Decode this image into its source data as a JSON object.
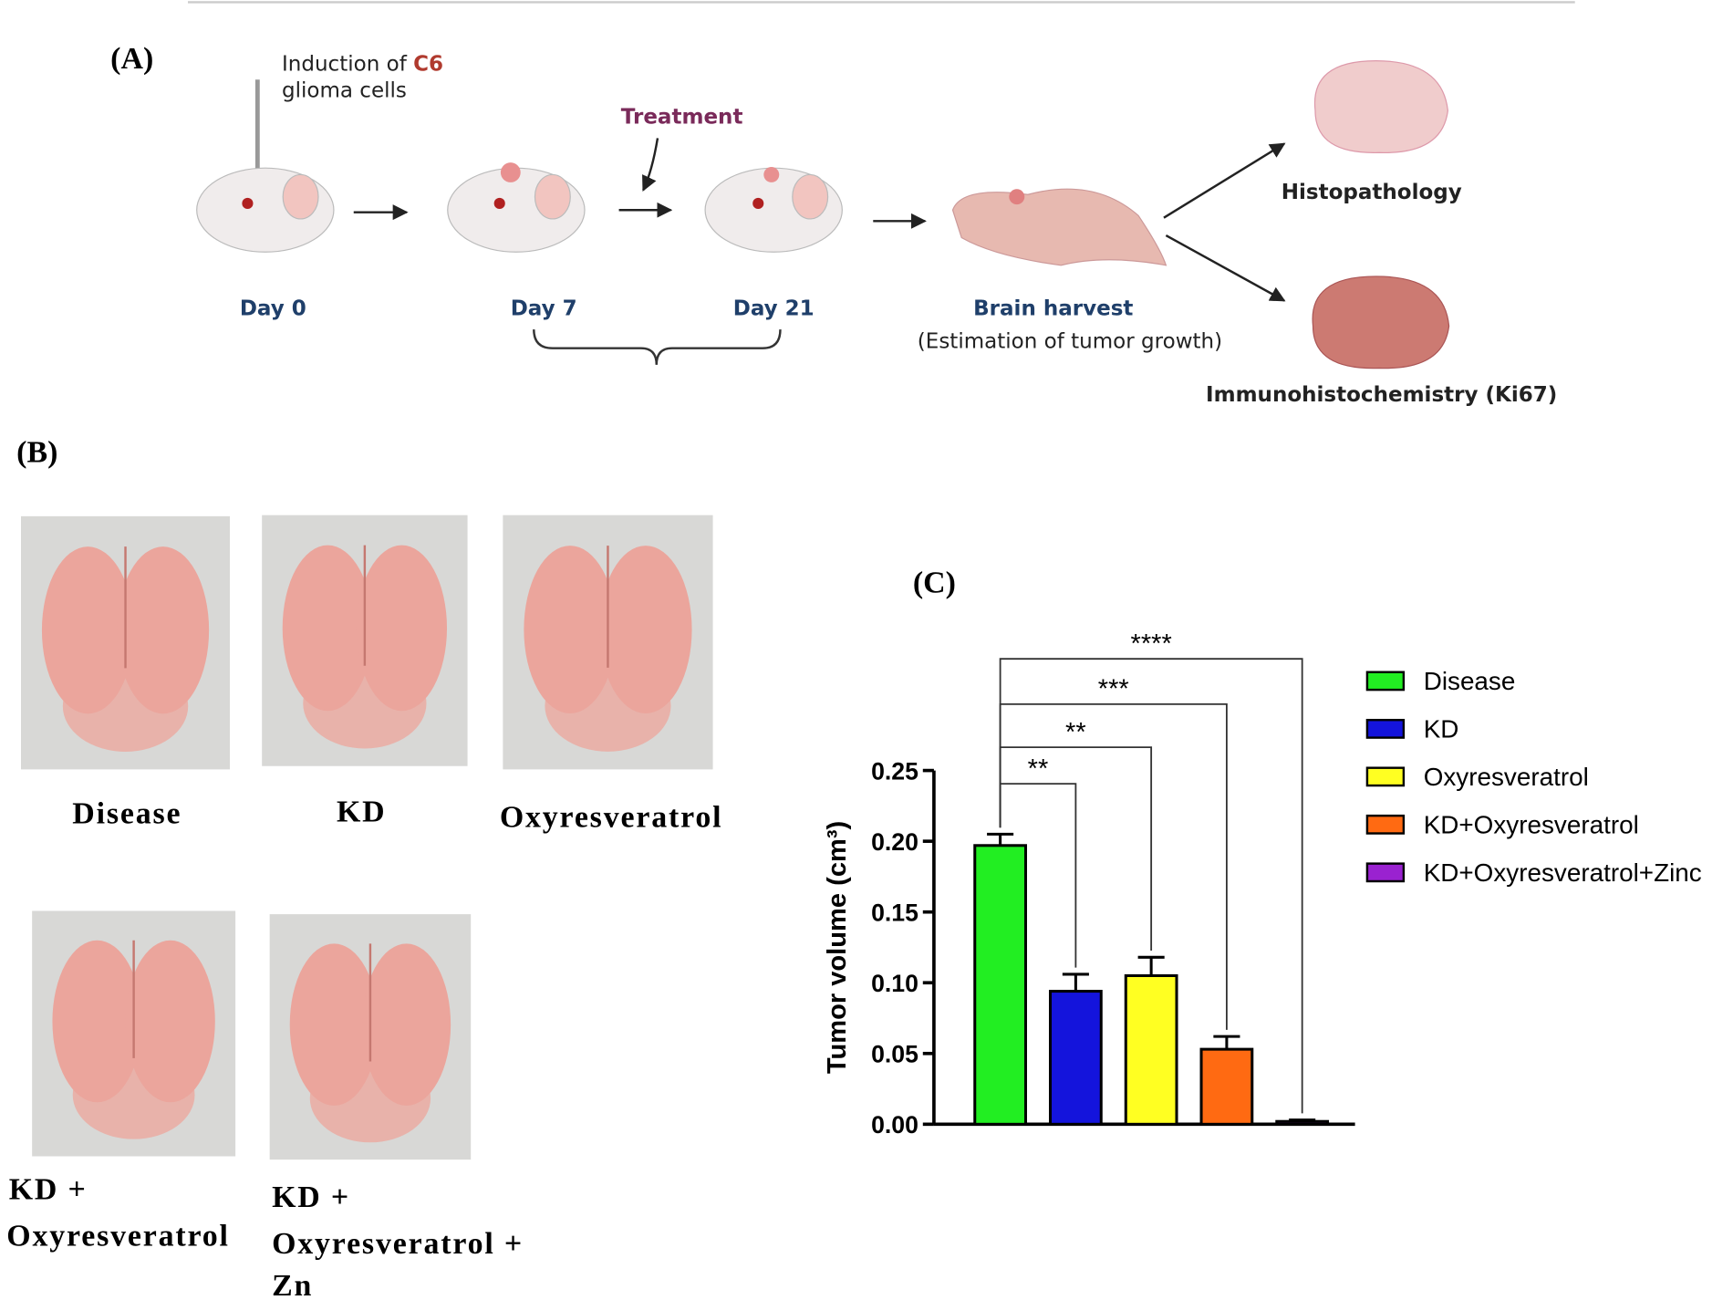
{
  "panel_a": {
    "label": "(A)",
    "induction_line1": "Induction of",
    "induction_highlight": "C6",
    "induction_line2": "glioma cells",
    "treatment": "Treatment",
    "day0": "Day 0",
    "day7": "Day 7",
    "day21": "Day 21",
    "brain_harvest": "Brain harvest",
    "estimation": "(Estimation of tumor growth)",
    "histopathology": "Histopathology",
    "ihc": "Immunohistochemistry (Ki67)"
  },
  "panel_b": {
    "label": "(B)",
    "captions": [
      [
        "Disease"
      ],
      [
        "KD"
      ],
      [
        "Oxyresveratrol"
      ],
      [
        "KD +",
        "Oxyresveratrol"
      ],
      [
        "KD +",
        "Oxyresveratrol +",
        "Zn"
      ]
    ]
  },
  "chart_data": {
    "type": "bar",
    "label": "(C)",
    "ylabel": "Tumor volume (cm³)",
    "categories": [
      "Disease",
      "KD",
      "Oxyresveratrol",
      "KD+Oxyresveratrol",
      "KD+Oxyresveratrol+Zinc"
    ],
    "values": [
      0.197,
      0.094,
      0.105,
      0.053,
      0.002
    ],
    "errors": [
      0.008,
      0.012,
      0.013,
      0.009,
      0.001
    ],
    "colors": [
      "#22ee22",
      "#1414dc",
      "#ffff22",
      "#ff6a12",
      "#9a22d0"
    ],
    "significance": [
      null,
      "**",
      "**",
      "***",
      "****"
    ],
    "ylim": [
      0,
      0.25
    ],
    "yticks": [
      {
        "value": 0,
        "label": "0.00"
      },
      0.05,
      {
        "value": 0.1,
        "label": "0.10"
      },
      0.15,
      {
        "value": 0.2,
        "label": "0.20"
      },
      0.25
    ],
    "legend": "right"
  }
}
